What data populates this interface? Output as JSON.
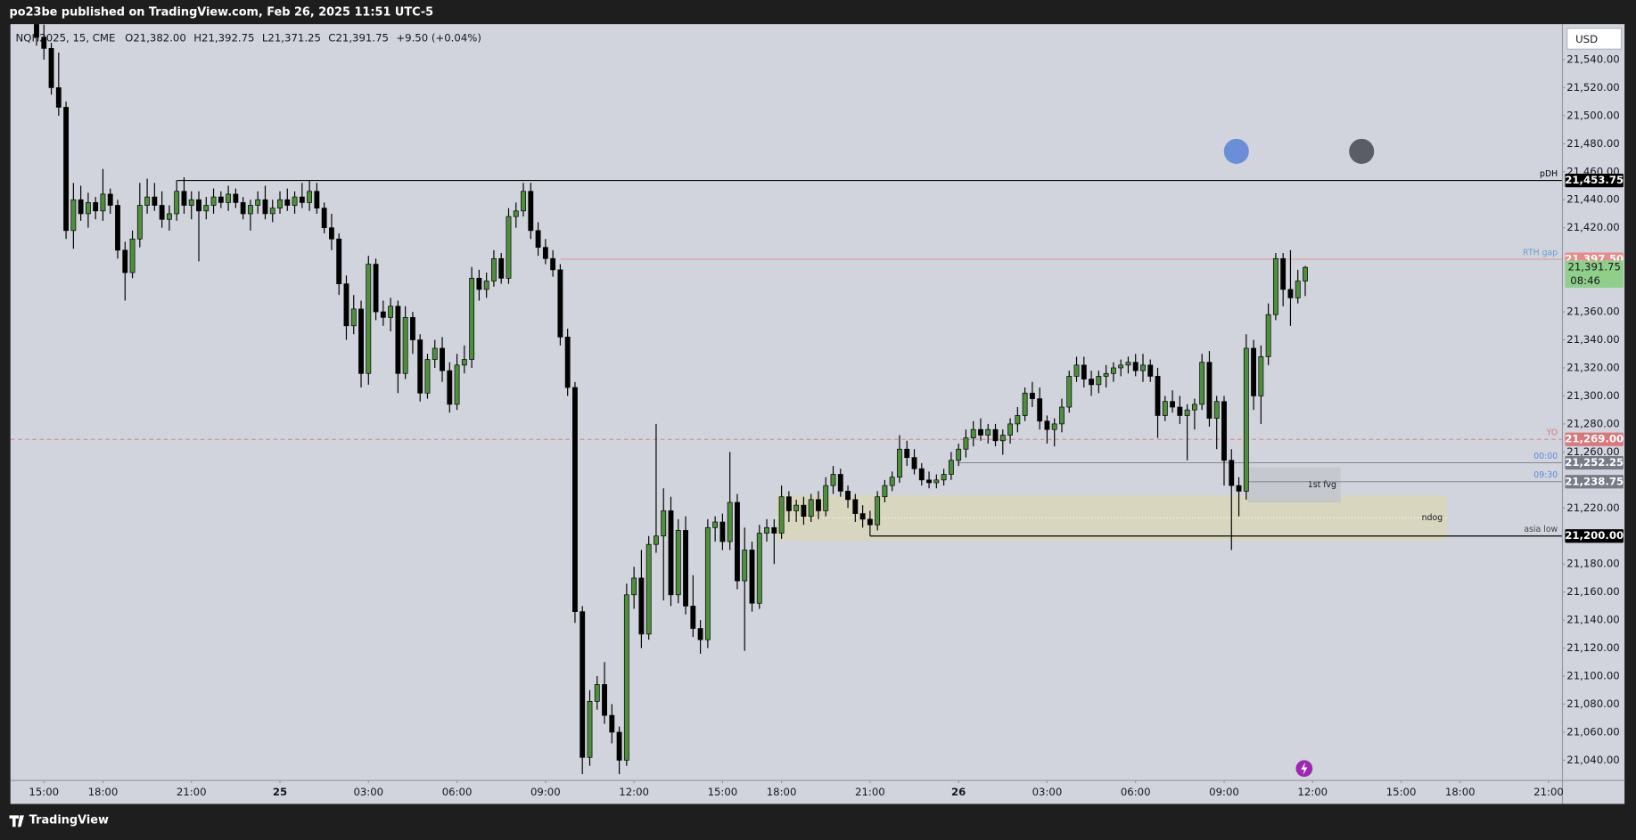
{
  "header": {
    "publisher": "po23be published on TradingView.com, Feb 26, 2025 11:51 UTC-5",
    "brand": "TradingView"
  },
  "chart_data": {
    "type": "candlestick",
    "symbol": "NQH2025, 15, CME",
    "ohlc_labels": [
      "O21,382.00",
      "H21,392.75",
      "L21,371.25",
      "C21,391.75"
    ],
    "change": "+9.50 (+0.04%)",
    "currency": "USD",
    "xlim": [
      -3.54,
      206.8
    ],
    "xticks": [
      {
        "value": 1,
        "label": "15:00"
      },
      {
        "value": 9,
        "label": "18:00"
      },
      {
        "value": 21,
        "label": "21:00"
      },
      {
        "value": 33,
        "label": "25"
      },
      {
        "value": 45,
        "label": "03:00"
      },
      {
        "value": 57,
        "label": "06:00"
      },
      {
        "value": 69,
        "label": "09:00"
      },
      {
        "value": 81,
        "label": "12:00"
      },
      {
        "value": 93,
        "label": "15:00"
      },
      {
        "value": 101,
        "label": "18:00"
      },
      {
        "value": 113,
        "label": "21:00"
      },
      {
        "value": 125,
        "label": "26"
      },
      {
        "value": 137,
        "label": "03:00"
      },
      {
        "value": 149,
        "label": "06:00"
      },
      {
        "value": 161,
        "label": "09:00"
      },
      {
        "value": 173,
        "label": "12:00"
      },
      {
        "value": 185,
        "label": "15:00"
      },
      {
        "value": 193,
        "label": "18:00"
      },
      {
        "value": 205,
        "label": "21:00"
      }
    ],
    "ylim": [
      21025.9,
      21565.3
    ],
    "yticks": [
      {
        "value": 21540,
        "label": "21,540.00"
      },
      {
        "value": 21520,
        "label": "21,520.00"
      },
      {
        "value": 21500,
        "label": "21,500.00"
      },
      {
        "value": 21480,
        "label": "21,480.00"
      },
      {
        "value": 21460,
        "label": "21,460.00"
      },
      {
        "value": 21440,
        "label": "21,440.00"
      },
      {
        "value": 21420,
        "label": "21,420.00"
      },
      {
        "value": 21360,
        "label": "21,360.00"
      },
      {
        "value": 21340,
        "label": "21,340.00"
      },
      {
        "value": 21320,
        "label": "21,320.00"
      },
      {
        "value": 21300,
        "label": "21,300.00"
      },
      {
        "value": 21280,
        "label": "21,280.00"
      },
      {
        "value": 21260,
        "label": "21,260.00"
      },
      {
        "value": 21220,
        "label": "21,220.00"
      },
      {
        "value": 21180,
        "label": "21,180.00"
      },
      {
        "value": 21160,
        "label": "21,160.00"
      },
      {
        "value": 21140,
        "label": "21,140.00"
      },
      {
        "value": 21120,
        "label": "21,120.00"
      },
      {
        "value": 21100,
        "label": "21,100.00"
      },
      {
        "value": 21080,
        "label": "21,080.00"
      },
      {
        "value": 21060,
        "label": "21,060.00"
      },
      {
        "value": 21040,
        "label": "21,040.00"
      }
    ],
    "up_color": "#4e8f3e",
    "down_color": "#000000",
    "open": [
      21570,
      21556,
      21548,
      21520,
      21506,
      21418,
      21440,
      21430,
      21438,
      21432,
      21444,
      21436,
      21404,
      21388,
      21412,
      21436,
      21442,
      21436,
      21426,
      21430,
      21446,
      21436,
      21440,
      21432,
      21436,
      21442,
      21438,
      21444,
      21438,
      21430,
      21436,
      21440,
      21430,
      21434,
      21440,
      21436,
      21442,
      21438,
      21446,
      21434,
      21420,
      21412,
      21380,
      21350,
      21362,
      21316,
      21394,
      21360,
      21356,
      21364,
      21316,
      21356,
      21340,
      21302,
      21326,
      21334,
      21318,
      21294,
      21322,
      21326,
      21384,
      21376,
      21382,
      21398,
      21384,
      21428,
      21432,
      21446,
      21418,
      21406,
      21398,
      21390,
      21342,
      21306,
      21146,
      21042,
      21082,
      21094,
      21072,
      21060,
      21040,
      21158,
      21170,
      21130,
      21194,
      21200,
      21218,
      21158,
      21204,
      21150,
      21134,
      21126,
      21206,
      21210,
      21196,
      21224,
      21168,
      21190,
      21152,
      21202,
      21206,
      21202,
      21228,
      21218,
      21222,
      21214,
      21226,
      21218,
      21236,
      21244,
      21232,
      21226,
      21216,
      21212,
      21208,
      21228,
      21236,
      21242,
      21262,
      21256,
      21248,
      21240,
      21238,
      21240,
      21244,
      21254,
      21262,
      21270,
      21276,
      21272,
      21276,
      21268,
      21272,
      21280,
      21286,
      21302,
      21298,
      21282,
      21276,
      21280,
      21292,
      21314,
      21322,
      21312,
      21308,
      21314,
      21316,
      21320,
      21322,
      21324,
      21318,
      21322,
      21314,
      21286,
      21296,
      21292,
      21286,
      21290,
      21294,
      21324,
      21284,
      21296,
      21254,
      21236,
      21232,
      21334,
      21300,
      21328,
      21358,
      21398,
      21376,
      21370,
      21382
    ],
    "high": [
      21580,
      21565,
      21552,
      21545,
      21510,
      21452,
      21450,
      21445,
      21442,
      21462,
      21448,
      21440,
      21410,
      21418,
      21452,
      21455,
      21452,
      21446,
      21436,
      21454,
      21456,
      21446,
      21446,
      21442,
      21448,
      21446,
      21450,
      21448,
      21442,
      21440,
      21446,
      21450,
      21440,
      21446,
      21448,
      21446,
      21452,
      21454,
      21452,
      21438,
      21430,
      21416,
      21386,
      21372,
      21368,
      21400,
      21398,
      21368,
      21370,
      21368,
      21364,
      21360,
      21344,
      21330,
      21340,
      21342,
      21324,
      21330,
      21336,
      21392,
      21390,
      21388,
      21404,
      21402,
      21434,
      21438,
      21452,
      21452,
      21424,
      21412,
      21404,
      21394,
      21348,
      21310,
      21150,
      21090,
      21100,
      21110,
      21080,
      21064,
      21166,
      21178,
      21190,
      21200,
      21280,
      21234,
      21228,
      21212,
      21214,
      21172,
      21140,
      21212,
      21214,
      21216,
      21260,
      21230,
      21206,
      21196,
      21208,
      21212,
      21212,
      21236,
      21232,
      21226,
      21228,
      21230,
      21232,
      21242,
      21250,
      21248,
      21236,
      21230,
      21222,
      21218,
      21232,
      21240,
      21246,
      21272,
      21268,
      21262,
      21252,
      21246,
      21244,
      21248,
      21260,
      21266,
      21276,
      21282,
      21284,
      21280,
      21280,
      21276,
      21284,
      21292,
      21306,
      21310,
      21306,
      21286,
      21284,
      21298,
      21318,
      21328,
      21328,
      21318,
      21318,
      21322,
      21324,
      21326,
      21328,
      21330,
      21330,
      21326,
      21320,
      21300,
      21304,
      21300,
      21294,
      21298,
      21330,
      21332,
      21300,
      21300,
      21262,
      21242,
      21344,
      21340,
      21336,
      21366,
      21402,
      21402,
      21404,
      21390,
      21392.75
    ],
    "low": [
      21550,
      21540,
      21515,
      21500,
      21412,
      21405,
      21425,
      21420,
      21426,
      21425,
      21430,
      21398,
      21368,
      21384,
      21406,
      21430,
      21432,
      21420,
      21418,
      21425,
      21430,
      21426,
      21396,
      21426,
      21430,
      21434,
      21432,
      21434,
      21426,
      21418,
      21430,
      21426,
      21424,
      21430,
      21432,
      21430,
      21434,
      21432,
      21430,
      21416,
      21404,
      21372,
      21340,
      21344,
      21306,
      21308,
      21354,
      21350,
      21346,
      21302,
      21312,
      21330,
      21296,
      21298,
      21320,
      21310,
      21288,
      21290,
      21316,
      21320,
      21368,
      21370,
      21378,
      21380,
      21380,
      21420,
      21428,
      21412,
      21400,
      21394,
      21385,
      21336,
      21300,
      21138,
      21030,
      21036,
      21076,
      21066,
      21052,
      21030,
      21036,
      21148,
      21120,
      21126,
      21188,
      21154,
      21150,
      21152,
      21144,
      21128,
      21116,
      21120,
      21196,
      21190,
      21190,
      21162,
      21118,
      21146,
      21148,
      21196,
      21180,
      21198,
      21210,
      21210,
      21208,
      21210,
      21212,
      21214,
      21230,
      21228,
      21220,
      21210,
      21206,
      21200,
      21204,
      21224,
      21232,
      21238,
      21250,
      21244,
      21236,
      21234,
      21234,
      21236,
      21240,
      21250,
      21256,
      21264,
      21268,
      21266,
      21264,
      21258,
      21266,
      21274,
      21282,
      21292,
      21276,
      21266,
      21264,
      21274,
      21288,
      21310,
      21306,
      21300,
      21302,
      21306,
      21310,
      21314,
      21316,
      21314,
      21310,
      21310,
      21270,
      21282,
      21288,
      21280,
      21254,
      21276,
      21290,
      21278,
      21262,
      21236,
      21190,
      21214,
      21226,
      21290,
      21280,
      21322,
      21354,
      21364,
      21350,
      21366,
      21371.25
    ],
    "close": [
      21556,
      21548,
      21520,
      21506,
      21418,
      21440,
      21430,
      21438,
      21432,
      21444,
      21436,
      21404,
      21388,
      21412,
      21436,
      21442,
      21436,
      21426,
      21430,
      21446,
      21436,
      21440,
      21432,
      21436,
      21442,
      21438,
      21444,
      21438,
      21430,
      21436,
      21440,
      21430,
      21434,
      21440,
      21436,
      21442,
      21438,
      21446,
      21434,
      21420,
      21412,
      21380,
      21350,
      21362,
      21316,
      21394,
      21360,
      21356,
      21364,
      21316,
      21356,
      21340,
      21302,
      21326,
      21334,
      21318,
      21294,
      21322,
      21326,
      21384,
      21376,
      21382,
      21398,
      21384,
      21428,
      21432,
      21446,
      21418,
      21406,
      21398,
      21390,
      21342,
      21306,
      21146,
      21042,
      21082,
      21094,
      21072,
      21060,
      21040,
      21158,
      21170,
      21130,
      21194,
      21200,
      21218,
      21158,
      21204,
      21150,
      21134,
      21126,
      21206,
      21210,
      21196,
      21224,
      21168,
      21190,
      21152,
      21202,
      21206,
      21202,
      21228,
      21218,
      21222,
      21214,
      21226,
      21218,
      21236,
      21244,
      21232,
      21226,
      21216,
      21212,
      21208,
      21228,
      21236,
      21242,
      21262,
      21256,
      21248,
      21240,
      21238,
      21240,
      21244,
      21254,
      21262,
      21270,
      21276,
      21272,
      21276,
      21268,
      21272,
      21280,
      21286,
      21302,
      21298,
      21282,
      21276,
      21280,
      21292,
      21314,
      21322,
      21312,
      21308,
      21314,
      21316,
      21320,
      21322,
      21324,
      21318,
      21322,
      21314,
      21286,
      21296,
      21292,
      21286,
      21290,
      21294,
      21324,
      21284,
      21296,
      21254,
      21236,
      21232,
      21334,
      21300,
      21328,
      21358,
      21398,
      21376,
      21370,
      21382,
      21391.75
    ],
    "zones": [
      {
        "name": "ndog",
        "from": 100.2,
        "to": 191.2,
        "top": 21229,
        "bottom": 21197,
        "mid": 21213,
        "color": "#d9d6b8"
      },
      {
        "name": "1st fvg",
        "from": 164.2,
        "to": 176.8,
        "top": 21249,
        "bottom": 21224,
        "color": "#c4c6cc"
      }
    ],
    "levels": [
      {
        "name": "pDH",
        "value": 21453.75,
        "price_label": "21,453.75",
        "from": 19.1,
        "color": "#000000",
        "label_color": "#000000"
      },
      {
        "name": "RTH gap",
        "value": 21397.5,
        "price_label": "21,397.50",
        "from": 71,
        "color": "#e88a8a",
        "label_color": "#6f9bd6"
      },
      {
        "name": "YO",
        "value": 21269,
        "price_label": "21,269.00",
        "color": "#d9777b",
        "label_color": "#d9777b",
        "dashed": true
      },
      {
        "name": "00:00",
        "value": 21252.25,
        "price_label": "21,252.25",
        "from": 125,
        "color": "#787b86",
        "label_color": "#5b8ae0"
      },
      {
        "name": "09:30",
        "value": 21238.75,
        "price_label": "21,238.75",
        "from": 164,
        "color": "#787b86",
        "label_color": "#5b8ae0"
      },
      {
        "name": "asia low",
        "value": 21200,
        "price_label": "21,200.00",
        "from": 113,
        "color": "#000000",
        "label_color": "#444444"
      }
    ],
    "last_price": {
      "value": 21391.75,
      "label": "21,391.75",
      "countdown": "08:46",
      "color": "#8fcf8a"
    }
  }
}
